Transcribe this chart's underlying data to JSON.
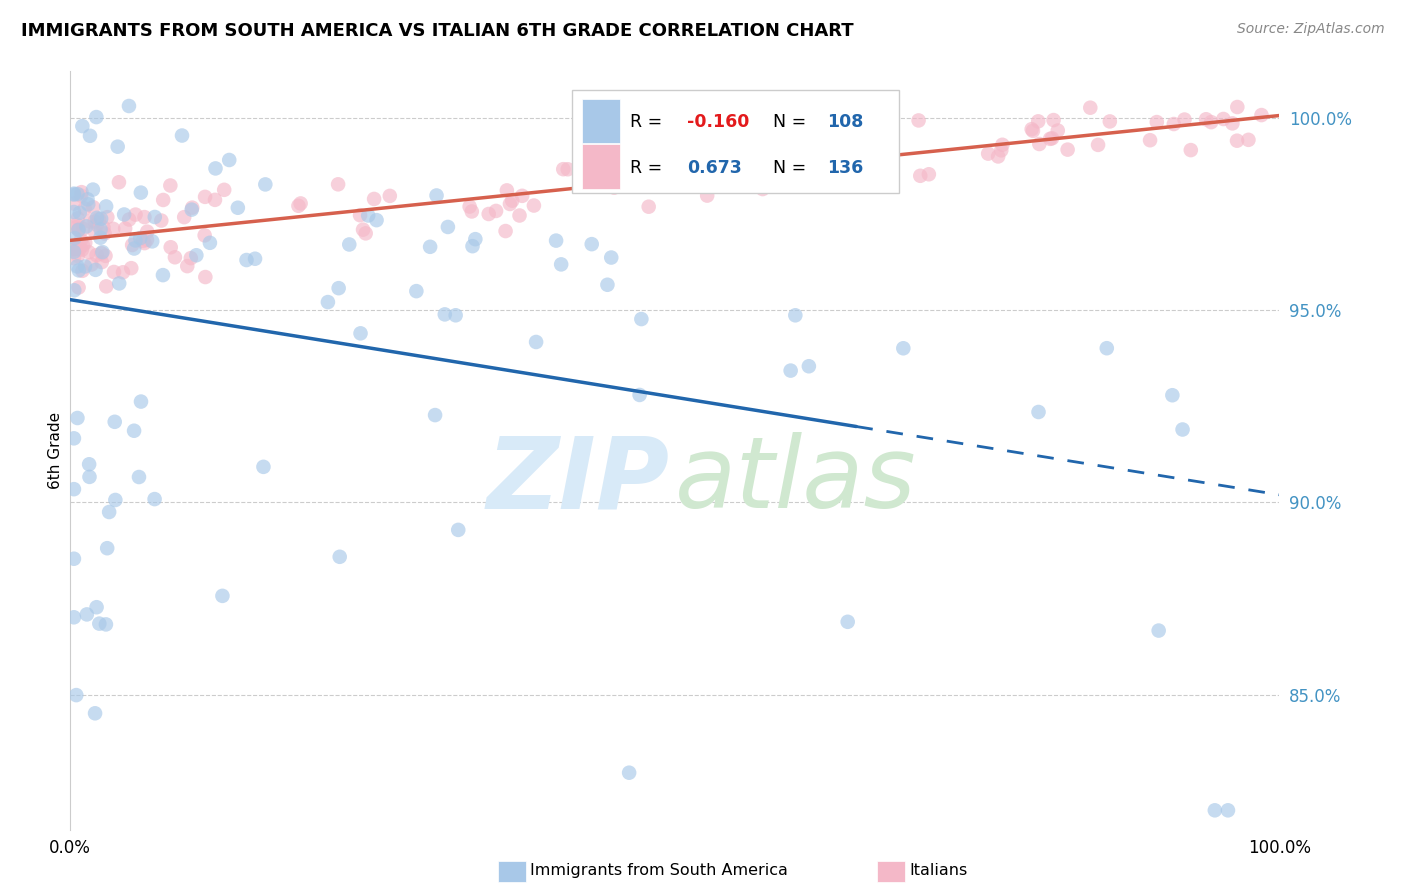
{
  "title": "IMMIGRANTS FROM SOUTH AMERICA VS ITALIAN 6TH GRADE CORRELATION CHART",
  "source": "Source: ZipAtlas.com",
  "ylabel": "6th Grade",
  "legend_blue_r_val": "-0.160",
  "legend_blue_n_val": "108",
  "legend_pink_r_val": "0.673",
  "legend_pink_n_val": "136",
  "blue_color": "#a8c8e8",
  "pink_color": "#f4b8c8",
  "blue_line_color": "#2166ac",
  "pink_line_color": "#d6604d",
  "r_val_color_blue": "#e31a1c",
  "r_val_color_pink": "#2166ac",
  "n_val_color": "#2166ac",
  "ytick_color": "#4393c3",
  "watermark_zip_color": "#d8eaf8",
  "watermark_atlas_color": "#d0e8d0",
  "ylim_low": 81.5,
  "ylim_high": 101.2,
  "xlim_low": 0,
  "xlim_high": 100,
  "blue_solid_end": 65,
  "seed_blue": 12,
  "seed_pink": 5
}
